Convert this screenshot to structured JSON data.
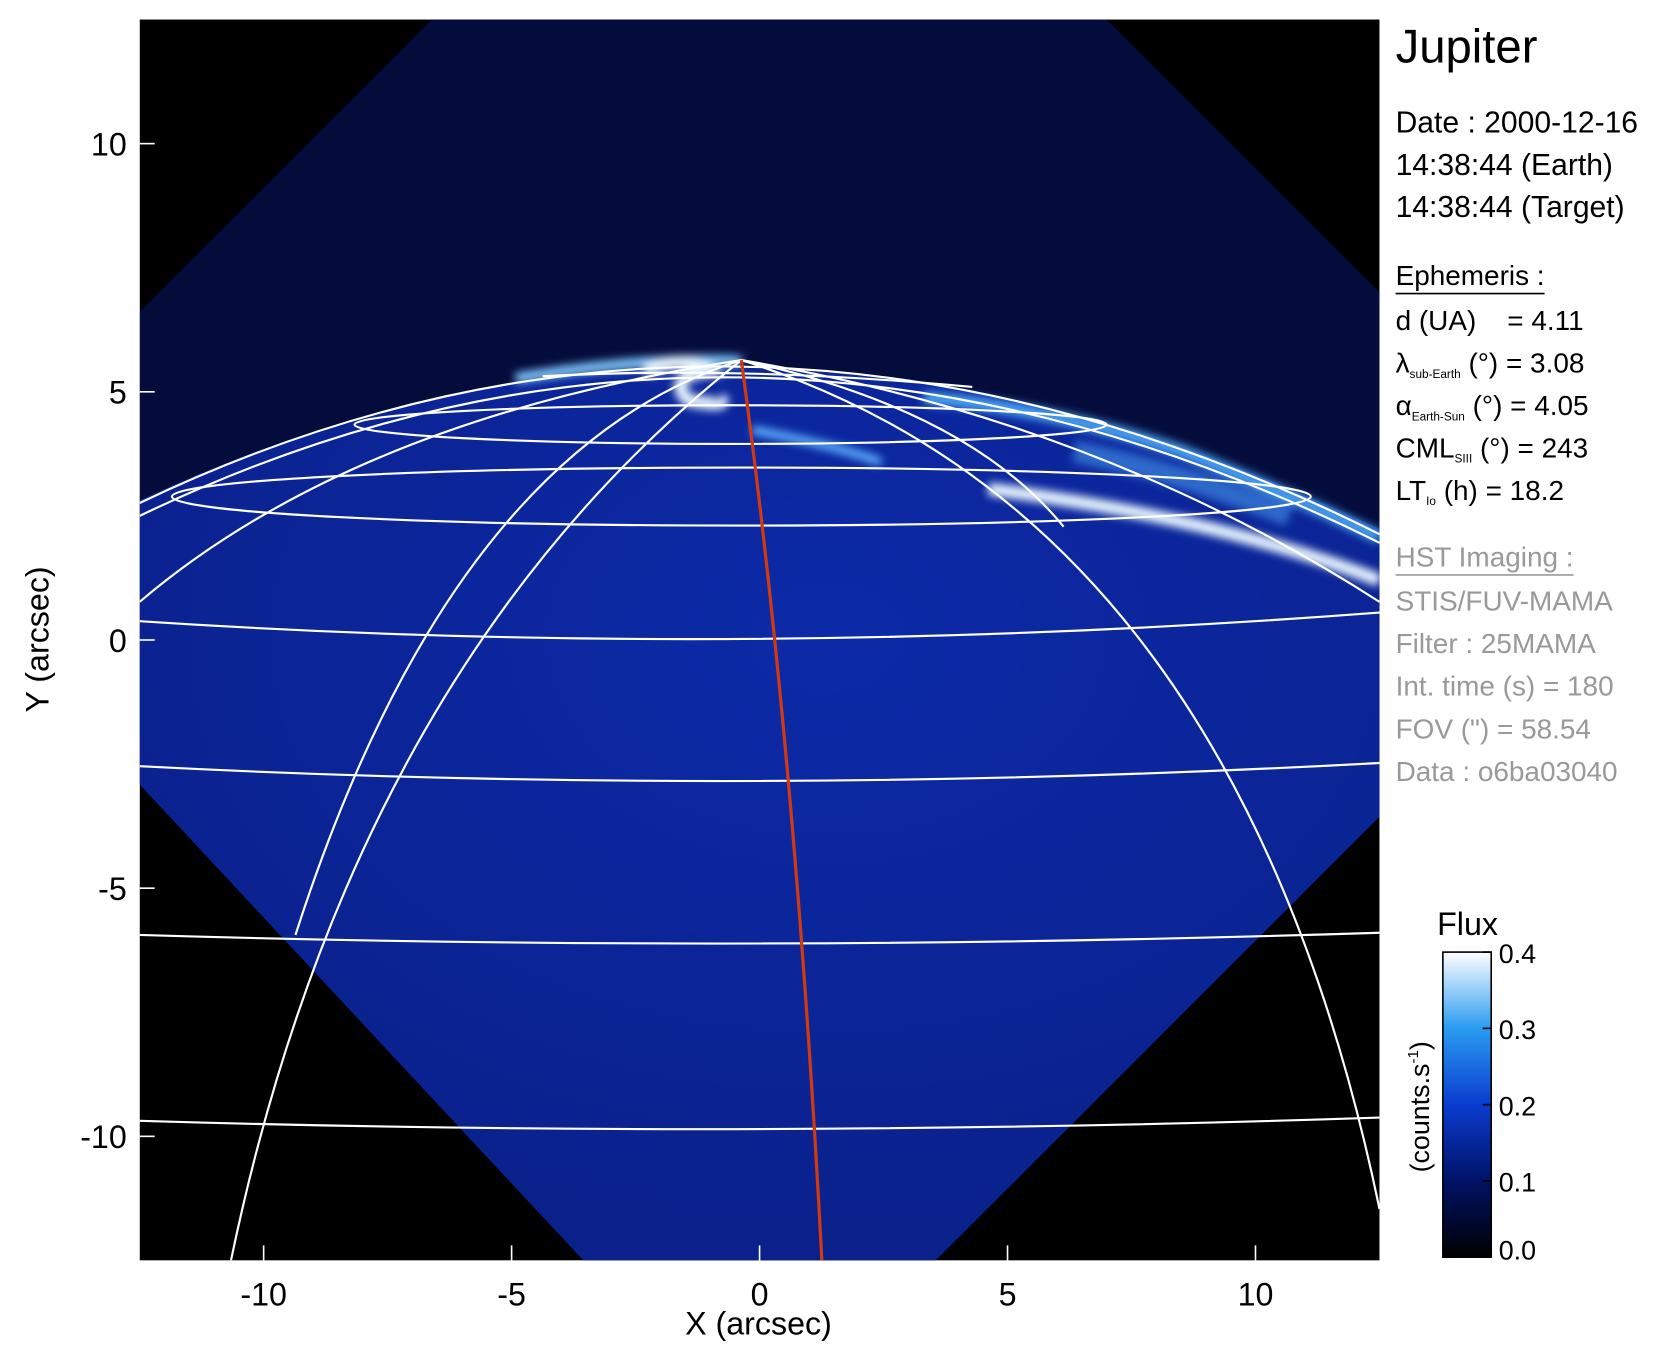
{
  "chart_data": {
    "type": "image",
    "title": "Jupiter",
    "x_label": "X (arcsec)",
    "y_label": "Y (arcsec)",
    "xlim": [
      -12.5,
      12.5
    ],
    "ylim": [
      -12.5,
      12.5
    ],
    "xticks": [
      -10,
      -5,
      0,
      5,
      10
    ],
    "yticks": [
      -10,
      -5,
      0,
      5,
      10
    ],
    "colorbar": {
      "title": "Flux",
      "label": "(counts.s",
      "label_sup": "-1",
      "label_end": ")",
      "clim": [
        0,
        0.4
      ],
      "ticks": [
        {
          "value": 0,
          "label": "0.0"
        },
        0.1,
        0.2,
        0.3,
        0.4
      ],
      "colors": [
        "#000000",
        "#001266",
        "#0a3cd0",
        "#2a9cf0",
        "#ffffff"
      ]
    }
  },
  "panel": {
    "date_lines": [
      "Date : 2000-12-16",
      "14:38:44 (Earth)",
      "14:38:44 (Target)"
    ],
    "ephemeris": {
      "heading": "Ephemeris :",
      "lines": [
        {
          "main": "d (UA)    = 4.11"
        },
        {
          "main": "λ",
          "sub": "sub-Earth",
          "rest": " (°) = 3.08"
        },
        {
          "main": "α",
          "sub": "Earth-Sun",
          "rest": " (°) = 4.05"
        },
        {
          "main": "CML",
          "sub": "SIII",
          "rest": " (°) = 243"
        },
        {
          "main": "LT",
          "sub": "Io",
          "rest": " (h) = 18.2"
        }
      ]
    },
    "imaging": {
      "heading": "HST Imaging :",
      "lines": [
        "STIS/FUV-MAMA",
        "Filter : 25MAMA",
        "Int. time (s) = 180",
        "FOV (\") = 58.54",
        "Data : o6ba03040"
      ]
    }
  }
}
